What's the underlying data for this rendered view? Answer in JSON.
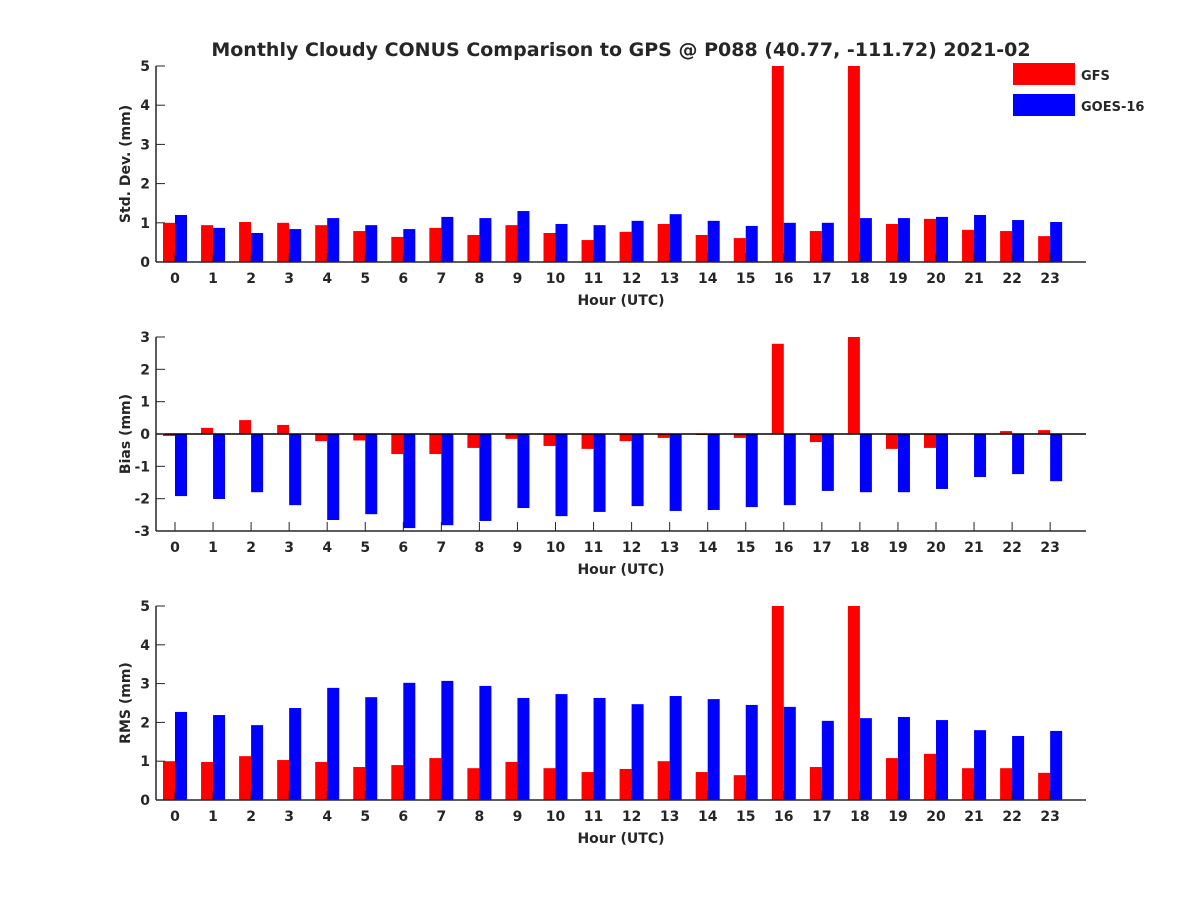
{
  "chart_data": [
    {
      "type": "bar",
      "title": "Monthly Cloudy CONUS Comparison to GPS @ P088 (40.77, -111.72) 2021-02",
      "xlabel": "Hour (UTC)",
      "ylabel": "Std. Dev. (mm)",
      "ylim": [
        0,
        5
      ],
      "yticks": [
        0,
        1,
        2,
        3,
        4,
        5
      ],
      "categories": [
        "0",
        "1",
        "2",
        "3",
        "4",
        "5",
        "6",
        "7",
        "8",
        "9",
        "10",
        "11",
        "12",
        "13",
        "14",
        "15",
        "16",
        "17",
        "18",
        "19",
        "20",
        "21",
        "22",
        "23"
      ],
      "series": [
        {
          "name": "GFS",
          "color": "#ff0000",
          "values": [
            1.0,
            0.94,
            1.02,
            1.0,
            0.94,
            0.79,
            0.64,
            0.87,
            0.69,
            0.94,
            0.74,
            0.56,
            0.77,
            0.97,
            0.69,
            0.61,
            5.0,
            0.79,
            5.0,
            0.97,
            1.1,
            0.82,
            0.79,
            0.66
          ]
        },
        {
          "name": "GOES-16",
          "color": "#0000ff",
          "values": [
            1.2,
            0.87,
            0.74,
            0.84,
            1.12,
            0.94,
            0.84,
            1.15,
            1.12,
            1.3,
            0.97,
            0.94,
            1.05,
            1.22,
            1.05,
            0.92,
            1.0,
            1.0,
            1.12,
            1.12,
            1.15,
            1.2,
            1.07,
            1.02
          ]
        }
      ],
      "legend": {
        "placement": "top-right",
        "entries": [
          "GFS",
          "GOES-16"
        ]
      }
    },
    {
      "type": "bar",
      "xlabel": "Hour (UTC)",
      "ylabel": "Bias (mm)",
      "ylim": [
        -3,
        3
      ],
      "yticks": [
        -3,
        -2,
        -1,
        0,
        1,
        2,
        3
      ],
      "categories": [
        "0",
        "1",
        "2",
        "3",
        "4",
        "5",
        "6",
        "7",
        "8",
        "9",
        "10",
        "11",
        "12",
        "13",
        "14",
        "15",
        "16",
        "17",
        "18",
        "19",
        "20",
        "21",
        "22",
        "23"
      ],
      "series": [
        {
          "name": "GFS",
          "color": "#ff0000",
          "values": [
            -0.06,
            0.19,
            0.43,
            0.28,
            -0.22,
            -0.2,
            -0.62,
            -0.62,
            -0.43,
            -0.15,
            -0.37,
            -0.46,
            -0.22,
            -0.12,
            -0.03,
            -0.12,
            2.79,
            -0.25,
            3.0,
            -0.46,
            -0.43,
            0.0,
            0.09,
            0.12
          ]
        },
        {
          "name": "GOES-16",
          "color": "#0000ff",
          "values": [
            -1.92,
            -2.01,
            -1.8,
            -2.2,
            -2.66,
            -2.48,
            -2.91,
            -2.82,
            -2.69,
            -2.29,
            -2.54,
            -2.41,
            -2.23,
            -2.38,
            -2.35,
            -2.26,
            -2.2,
            -1.76,
            -1.8,
            -1.8,
            -1.7,
            -1.33,
            -1.24,
            -1.46
          ]
        }
      ]
    },
    {
      "type": "bar",
      "xlabel": "Hour (UTC)",
      "ylabel": "RMS (mm)",
      "ylim": [
        0,
        5
      ],
      "yticks": [
        0,
        1,
        2,
        3,
        4,
        5
      ],
      "categories": [
        "0",
        "1",
        "2",
        "3",
        "4",
        "5",
        "6",
        "7",
        "8",
        "9",
        "10",
        "11",
        "12",
        "13",
        "14",
        "15",
        "16",
        "17",
        "18",
        "19",
        "20",
        "21",
        "22",
        "23"
      ],
      "series": [
        {
          "name": "GFS",
          "color": "#ff0000",
          "values": [
            1.0,
            0.98,
            1.13,
            1.03,
            0.98,
            0.85,
            0.9,
            1.08,
            0.82,
            0.98,
            0.82,
            0.72,
            0.8,
            1.0,
            0.72,
            0.64,
            5.0,
            0.85,
            5.0,
            1.08,
            1.19,
            0.82,
            0.82,
            0.7
          ]
        },
        {
          "name": "GOES-16",
          "color": "#0000ff",
          "values": [
            2.27,
            2.19,
            1.93,
            2.37,
            2.89,
            2.65,
            3.02,
            3.07,
            2.94,
            2.63,
            2.73,
            2.63,
            2.47,
            2.68,
            2.6,
            2.45,
            2.4,
            2.04,
            2.11,
            2.14,
            2.06,
            1.8,
            1.65,
            1.78
          ]
        }
      ]
    }
  ]
}
